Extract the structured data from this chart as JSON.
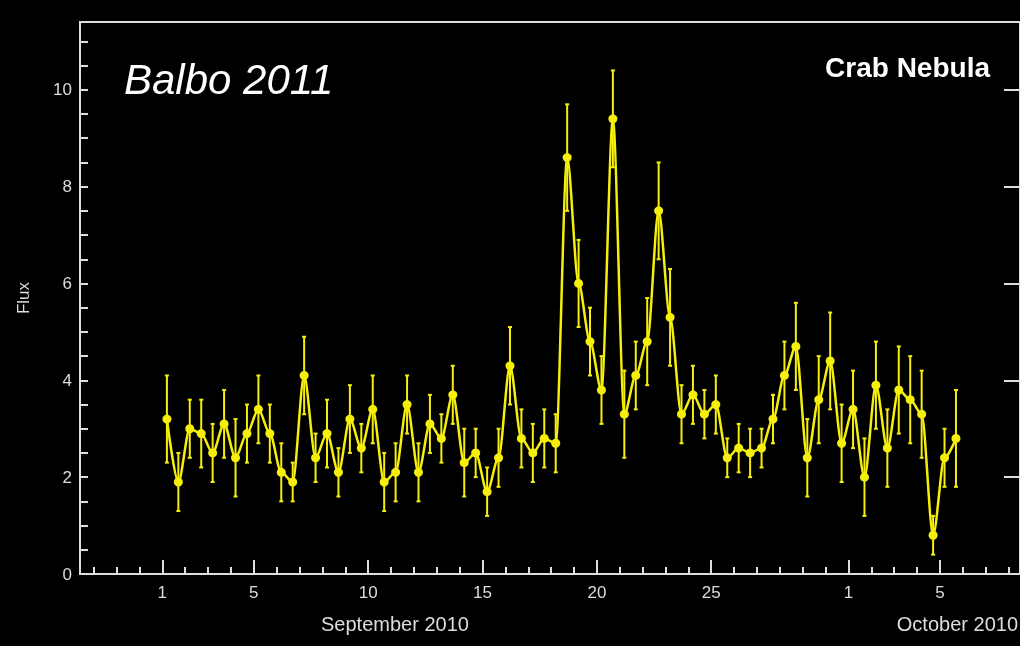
{
  "chart_data": {
    "type": "line",
    "title": "Crab Nebula",
    "xlabel": "September 2010",
    "ylabel": "Flux",
    "annotations": [
      "Balbo 2011",
      "October 2010"
    ],
    "x": [
      "2010-09-01T04:48",
      "2010-09-01T16:48",
      "2010-09-02T04:48",
      "2010-09-02T16:48",
      "2010-09-03T04:48",
      "2010-09-03T16:48",
      "2010-09-04T04:48",
      "2010-09-04T16:48",
      "2010-09-05T04:48",
      "2010-09-05T16:48",
      "2010-09-06T04:48",
      "2010-09-06T16:48",
      "2010-09-07T04:48",
      "2010-09-07T16:48",
      "2010-09-08T04:48",
      "2010-09-08T16:48",
      "2010-09-09T04:48",
      "2010-09-09T16:48",
      "2010-09-10T04:48",
      "2010-09-10T16:48",
      "2010-09-11T04:48",
      "2010-09-11T16:48",
      "2010-09-12T04:48",
      "2010-09-12T16:48",
      "2010-09-13T04:48",
      "2010-09-13T16:48",
      "2010-09-14T04:48",
      "2010-09-14T16:48",
      "2010-09-15T04:48",
      "2010-09-15T16:48",
      "2010-09-16T04:48",
      "2010-09-16T16:48",
      "2010-09-17T04:48",
      "2010-09-17T16:48",
      "2010-09-18T04:48",
      "2010-09-18T16:48",
      "2010-09-19T04:48",
      "2010-09-19T16:48",
      "2010-09-20T04:48",
      "2010-09-20T16:48",
      "2010-09-21T04:48",
      "2010-09-21T16:48",
      "2010-09-22T04:48",
      "2010-09-22T16:48",
      "2010-09-23T04:48",
      "2010-09-23T16:48",
      "2010-09-24T04:48",
      "2010-09-24T16:48",
      "2010-09-25T04:48",
      "2010-09-25T16:48",
      "2010-09-26T04:48",
      "2010-09-26T16:48",
      "2010-09-27T04:48",
      "2010-09-27T16:48",
      "2010-09-28T04:48",
      "2010-09-28T16:48",
      "2010-09-29T04:48",
      "2010-09-29T16:48",
      "2010-09-30T04:48",
      "2010-09-30T16:48",
      "2010-10-01T04:48",
      "2010-10-01T16:48",
      "2010-10-02T04:48",
      "2010-10-02T16:48",
      "2010-10-03T04:48",
      "2010-10-03T16:48",
      "2010-10-04T04:48",
      "2010-10-04T16:48",
      "2010-10-05T04:48",
      "2010-10-05T16:48"
    ],
    "values": [
      3.2,
      1.9,
      3.0,
      2.9,
      2.5,
      3.1,
      2.4,
      2.9,
      3.4,
      2.9,
      2.1,
      1.9,
      4.1,
      2.4,
      2.9,
      2.1,
      3.2,
      2.6,
      3.4,
      1.9,
      2.1,
      3.5,
      2.1,
      3.1,
      2.8,
      3.7,
      2.3,
      2.5,
      1.7,
      2.4,
      4.3,
      2.8,
      2.5,
      2.8,
      2.7,
      8.6,
      6.0,
      4.8,
      3.8,
      9.4,
      3.3,
      4.1,
      4.8,
      7.5,
      5.3,
      3.3,
      3.7,
      3.3,
      3.5,
      2.4,
      2.6,
      2.5,
      2.6,
      3.2,
      4.1,
      4.7,
      2.4,
      3.6,
      4.4,
      2.7,
      3.4,
      2.0,
      3.9,
      2.6,
      3.8,
      3.6,
      3.3,
      0.8,
      2.4,
      2.8
    ],
    "errors": [
      0.9,
      0.6,
      0.6,
      0.7,
      0.6,
      0.7,
      0.8,
      0.6,
      0.7,
      0.6,
      0.6,
      0.4,
      0.8,
      0.5,
      0.7,
      0.5,
      0.7,
      0.5,
      0.7,
      0.6,
      0.6,
      0.6,
      0.6,
      0.6,
      0.5,
      0.6,
      0.7,
      0.5,
      0.5,
      0.6,
      0.8,
      0.6,
      0.6,
      0.6,
      0.6,
      1.1,
      0.9,
      0.7,
      0.7,
      1.0,
      0.9,
      0.7,
      0.9,
      1.0,
      1.0,
      0.6,
      0.6,
      0.5,
      0.6,
      0.4,
      0.5,
      0.5,
      0.4,
      0.5,
      0.7,
      0.9,
      0.8,
      0.9,
      1.0,
      0.8,
      0.8,
      0.8,
      0.9,
      0.8,
      0.9,
      0.9,
      0.9,
      0.4,
      0.6,
      1.0
    ],
    "color": "#f5ef0a",
    "marker": "circle",
    "line_style": "solid",
    "xlim": [
      "2010-08-28T09:36",
      "2010-10-08T12:00"
    ],
    "xticks": [
      {
        "value": "2010-08-29",
        "label": null
      },
      {
        "value": "2010-08-30",
        "label": null
      },
      {
        "value": "2010-08-31",
        "label": null
      },
      {
        "value": "2010-09-01",
        "label": "1"
      },
      {
        "value": "2010-09-02",
        "label": null
      },
      {
        "value": "2010-09-03",
        "label": null
      },
      {
        "value": "2010-09-04",
        "label": null
      },
      {
        "value": "2010-09-05",
        "label": "5"
      },
      {
        "value": "2010-09-06",
        "label": null
      },
      {
        "value": "2010-09-07",
        "label": null
      },
      {
        "value": "2010-09-08",
        "label": null
      },
      {
        "value": "2010-09-09",
        "label": null
      },
      {
        "value": "2010-09-10",
        "label": "10"
      },
      {
        "value": "2010-09-11",
        "label": null
      },
      {
        "value": "2010-09-12",
        "label": null
      },
      {
        "value": "2010-09-13",
        "label": null
      },
      {
        "value": "2010-09-14",
        "label": null
      },
      {
        "value": "2010-09-15",
        "label": "15"
      },
      {
        "value": "2010-09-16",
        "label": null
      },
      {
        "value": "2010-09-17",
        "label": null
      },
      {
        "value": "2010-09-18",
        "label": null
      },
      {
        "value": "2010-09-19",
        "label": null
      },
      {
        "value": "2010-09-20",
        "label": "20"
      },
      {
        "value": "2010-09-21",
        "label": null
      },
      {
        "value": "2010-09-22",
        "label": null
      },
      {
        "value": "2010-09-23",
        "label": null
      },
      {
        "value": "2010-09-24",
        "label": null
      },
      {
        "value": "2010-09-25",
        "label": "25"
      },
      {
        "value": "2010-09-26",
        "label": null
      },
      {
        "value": "2010-09-27",
        "label": null
      },
      {
        "value": "2010-09-28",
        "label": null
      },
      {
        "value": "2010-09-29",
        "label": null
      },
      {
        "value": "2010-09-30",
        "label": null
      },
      {
        "value": "2010-10-01",
        "label": "1"
      },
      {
        "value": "2010-10-02",
        "label": null
      },
      {
        "value": "2010-10-03",
        "label": null
      },
      {
        "value": "2010-10-04",
        "label": null
      },
      {
        "value": "2010-10-05",
        "label": "5"
      },
      {
        "value": "2010-10-06",
        "label": null
      },
      {
        "value": "2010-10-07",
        "label": null
      },
      {
        "value": "2010-10-08",
        "label": null
      }
    ],
    "ylim": [
      0,
      11.4
    ],
    "yticks": [
      0,
      {
        "value": 0.5,
        "label": null
      },
      {
        "value": 1,
        "label": null
      },
      {
        "value": 1.5,
        "label": null
      },
      2,
      {
        "value": 2.5,
        "label": null
      },
      {
        "value": 3,
        "label": null
      },
      {
        "value": 3.5,
        "label": null
      },
      4,
      {
        "value": 4.5,
        "label": null
      },
      {
        "value": 5,
        "label": null
      },
      {
        "value": 5.5,
        "label": null
      },
      6,
      {
        "value": 6.5,
        "label": null
      },
      {
        "value": 7,
        "label": null
      },
      {
        "value": 7.5,
        "label": null
      },
      8,
      {
        "value": 8.5,
        "label": null
      },
      {
        "value": 9,
        "label": null
      },
      {
        "value": 9.5,
        "label": null
      },
      10,
      {
        "value": 10.5,
        "label": null
      },
      {
        "value": 11,
        "label": null
      }
    ]
  }
}
